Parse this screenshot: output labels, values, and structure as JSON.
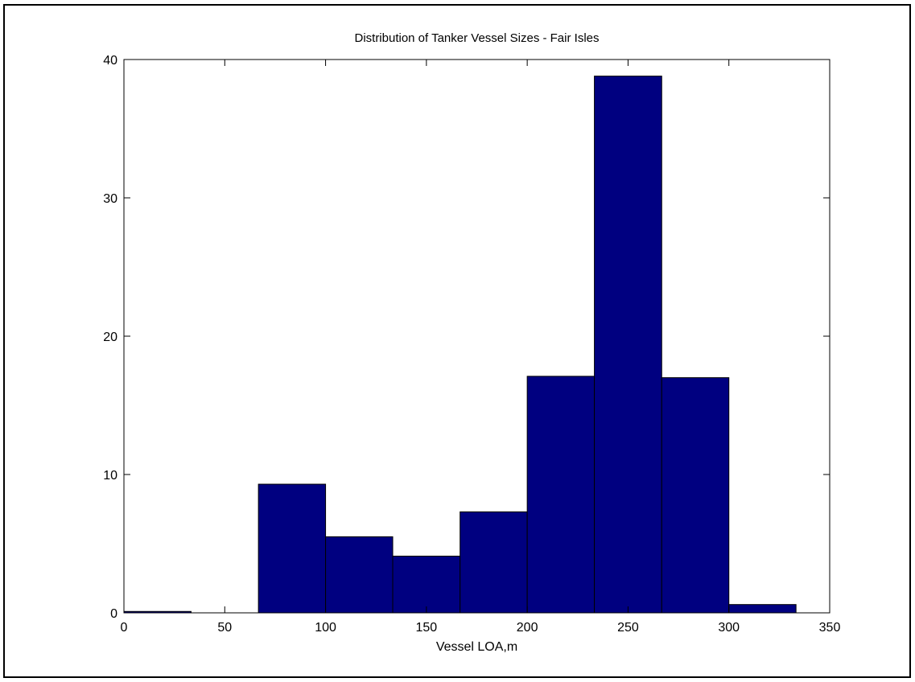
{
  "chart_data": {
    "type": "bar",
    "title": "Distribution of Tanker Vessel Sizes - Fair Isles",
    "xlabel": "Vessel LOA,m",
    "ylabel": "",
    "xlim": [
      0,
      350
    ],
    "ylim": [
      0,
      40
    ],
    "xticks": [
      0,
      50,
      100,
      150,
      200,
      250,
      300,
      350
    ],
    "yticks": [
      0,
      10,
      20,
      30,
      40
    ],
    "grid": false,
    "legend": "none",
    "bar_color": "#000080",
    "bin_edges": [
      0,
      33.3,
      66.7,
      100,
      133.3,
      166.7,
      200,
      233.3,
      266.7,
      300,
      333.3
    ],
    "values": [
      0.1,
      0,
      9.3,
      5.5,
      4.1,
      7.3,
      17.1,
      38.8,
      17.0,
      0.6
    ]
  }
}
